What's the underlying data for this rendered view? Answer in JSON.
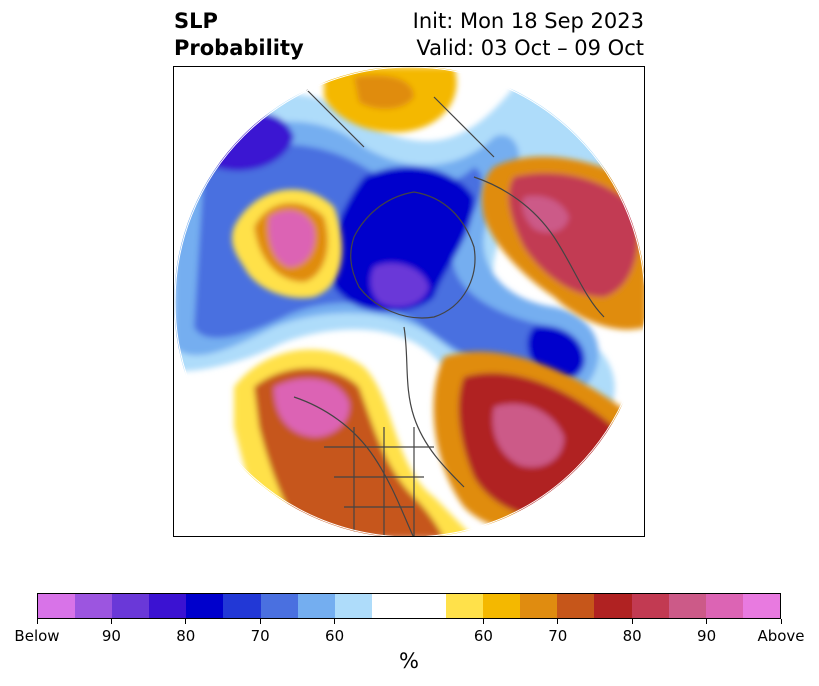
{
  "title": {
    "left_line1": "SLP",
    "left_line2": "Probability",
    "right_line1": "Init: Mon 18 Sep 2023",
    "right_line2": "Valid: 03 Oct – 09 Oct"
  },
  "colorbar": {
    "colors": [
      "#d873e8",
      "#9c55e0",
      "#6a38d8",
      "#3b12d2",
      "#0000cc",
      "#2238d6",
      "#4a70e0",
      "#74aef0",
      "#aedcfa",
      "#ffffff",
      "#ffffff",
      "#ffe14a",
      "#f4b800",
      "#e08c10",
      "#c6561a",
      "#b02222",
      "#c23a52",
      "#cc5a88",
      "#dc64b4",
      "#e87ae0"
    ],
    "labels": [
      "Below",
      "90",
      "80",
      "70",
      "60",
      "60",
      "70",
      "80",
      "90",
      "Above"
    ],
    "unit": "%"
  },
  "map": {
    "projection": "north-polar-stereographic",
    "variable": "SLP probability"
  }
}
